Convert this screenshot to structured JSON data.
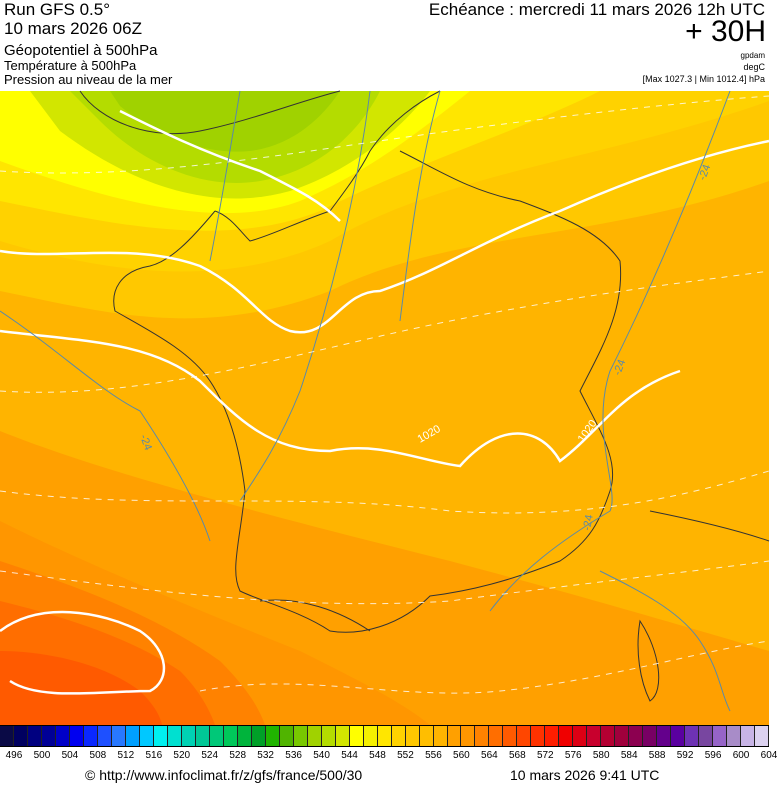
{
  "header": {
    "run": "Run GFS 0.5°",
    "run_date": "10 mars 2026 06Z",
    "param1": "Géopotentiel à 500hPa",
    "param2": "Température à 500hPa",
    "param3": "Pression au niveau de la mer",
    "echeance": "Echéance : mercredi 11 mars 2026 12h UTC",
    "lead": "+ 30H",
    "unit1": "gpdam",
    "unit2": "degC",
    "pressure_range": "[Max 1027.3 | Min 1012.4] hPa"
  },
  "map": {
    "contour_labels": {
      "temperature": "-24",
      "pressure": "1020"
    }
  },
  "legend": {
    "ticks": [
      "496",
      "500",
      "504",
      "508",
      "512",
      "516",
      "520",
      "524",
      "528",
      "532",
      "536",
      "540",
      "544",
      "548",
      "552",
      "556",
      "560",
      "564",
      "568",
      "572",
      "576",
      "580",
      "584",
      "588",
      "592",
      "596",
      "600",
      "604"
    ],
    "colors": [
      "#0a0a46",
      "#000060",
      "#000080",
      "#000096",
      "#0000c8",
      "#0000f0",
      "#0a28ff",
      "#1e50ff",
      "#2878ff",
      "#00a0ff",
      "#00c8ff",
      "#00f0f0",
      "#00e0d0",
      "#00d2b4",
      "#00c896",
      "#00c878",
      "#00c85a",
      "#00b43c",
      "#00a028",
      "#20b400",
      "#50b400",
      "#78c800",
      "#a0d200",
      "#b4dc00",
      "#d2e600",
      "#ffff00",
      "#f5f000",
      "#ffe600",
      "#ffd200",
      "#ffc800",
      "#ffbe00",
      "#ffb400",
      "#ffa000",
      "#ff9600",
      "#ff8200",
      "#ff6e00",
      "#ff5a00",
      "#ff4600",
      "#ff3200",
      "#ff1e00",
      "#f00000",
      "#dc0014",
      "#c8002d",
      "#b40032",
      "#a0003c",
      "#8c0050",
      "#780064",
      "#64008c",
      "#5a00a0",
      "#6e32b4",
      "#7846a0",
      "#9664c8",
      "#a88cc8",
      "#c8b4e6",
      "#dcd2f0"
    ]
  },
  "footer": {
    "url": "© http://www.infoclimat.fr/z/gfs/france/500/30",
    "timestamp": "10 mars 2026  9:41 UTC"
  }
}
